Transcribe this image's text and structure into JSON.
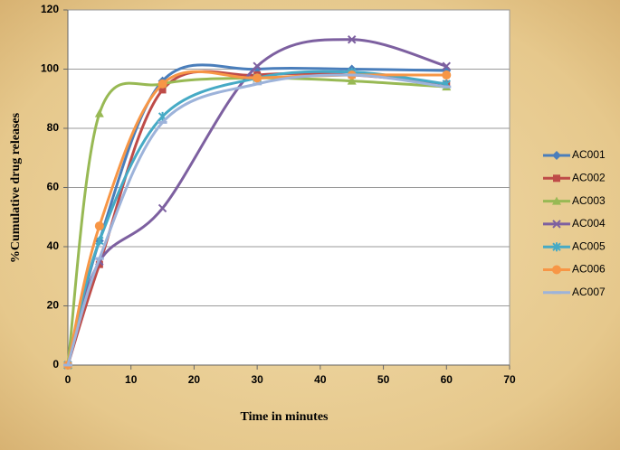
{
  "chart_data": {
    "type": "line",
    "smooth": true,
    "grid": true,
    "x_label": "Time in minutes",
    "y_label": "%Cumulative drug releases",
    "xlim": [
      0,
      70
    ],
    "xticks": [
      0,
      10,
      20,
      30,
      40,
      50,
      60,
      70
    ],
    "ylim": [
      0,
      120
    ],
    "yticks": [
      0,
      20,
      40,
      60,
      80,
      100,
      120
    ],
    "x": [
      0,
      5,
      15,
      30,
      45,
      60
    ],
    "series": [
      {
        "name": "AC001",
        "color": "#4a7ebb",
        "marker": "diamond",
        "values": [
          0,
          42,
          96,
          100,
          100,
          99.5
        ]
      },
      {
        "name": "AC002",
        "color": "#be4b48",
        "marker": "square",
        "values": [
          0,
          34,
          93,
          98,
          98,
          95
        ]
      },
      {
        "name": "AC003",
        "color": "#98b954",
        "marker": "triangle",
        "values": [
          0,
          85,
          95,
          97,
          96,
          94
        ]
      },
      {
        "name": "AC004",
        "color": "#7d60a0",
        "marker": "x",
        "values": [
          0,
          35,
          53,
          101,
          110,
          101
        ]
      },
      {
        "name": "AC005",
        "color": "#46aac5",
        "marker": "star",
        "values": [
          0,
          42,
          84,
          97,
          99,
          95
        ]
      },
      {
        "name": "AC006",
        "color": "#f79646",
        "marker": "circle",
        "values": [
          0,
          47,
          95,
          97,
          98,
          98
        ]
      },
      {
        "name": "AC007",
        "color": "#9db3da",
        "marker": "dash",
        "values": [
          0,
          36,
          82,
          95,
          98,
          94
        ]
      }
    ]
  }
}
